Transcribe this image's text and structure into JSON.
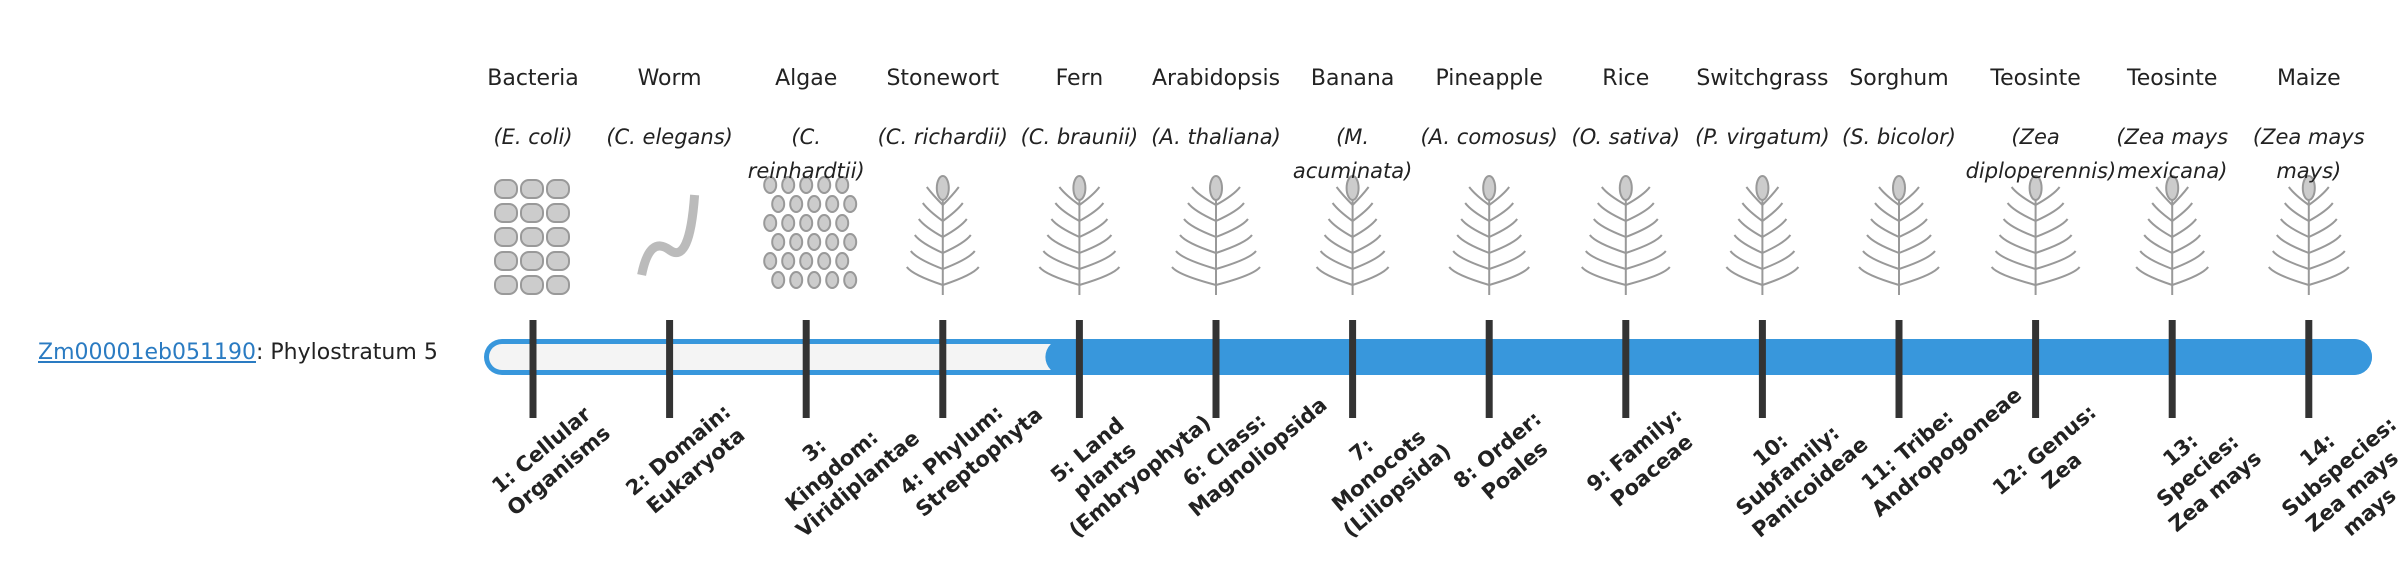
{
  "gene": {
    "id": "Zm00001eb051190",
    "separator": ": ",
    "label": "Phylostratum",
    "value": 5
  },
  "strata": [
    {
      "name": "Bacteria",
      "species": "(E. coli)",
      "stratum": "1: Cellular Organisms"
    },
    {
      "name": "Worm",
      "species": "(C. elegans)",
      "stratum": "2: Domain: Eukaryota"
    },
    {
      "name": "Algae",
      "species": "(C. reinhardtii)",
      "stratum": "3: Kingdom: Viridiplantae"
    },
    {
      "name": "Stonewort",
      "species": "(C. richardii)",
      "stratum": "4: Phylum: Streptophyta"
    },
    {
      "name": "Fern",
      "species": "(C. braunii)",
      "stratum": "5: Land plants (Embryophyta)"
    },
    {
      "name": "Arabidopsis",
      "species": "(A. thaliana)",
      "stratum": "6: Class: Magnoliopsida"
    },
    {
      "name": "Banana",
      "species": "(M. acuminata)",
      "stratum": "7: Monocots (Liliopsida)"
    },
    {
      "name": "Pineapple",
      "species": "(A. comosus)",
      "stratum": "8: Order: Poales"
    },
    {
      "name": "Rice",
      "species": "(O. sativa)",
      "stratum": "9: Family: Poaceae"
    },
    {
      "name": "Switchgrass",
      "species": "(P. virgatum)",
      "stratum": "10: Subfamily: Panicoideae"
    },
    {
      "name": "Sorghum",
      "species": "(S. bicolor)",
      "stratum": "11: Tribe: Andropogoneae"
    },
    {
      "name": "Teosinte",
      "species": "(Zea diploperennis)",
      "stratum": "12: Genus: Zea"
    },
    {
      "name": "Teosinte",
      "species": "(Zea mays mexicana)",
      "stratum": "13: Species: Zea mays"
    },
    {
      "name": "Maize",
      "species": "(Zea mays mays)",
      "stratum": "14: Subspecies: Zea mays mays"
    }
  ]
}
